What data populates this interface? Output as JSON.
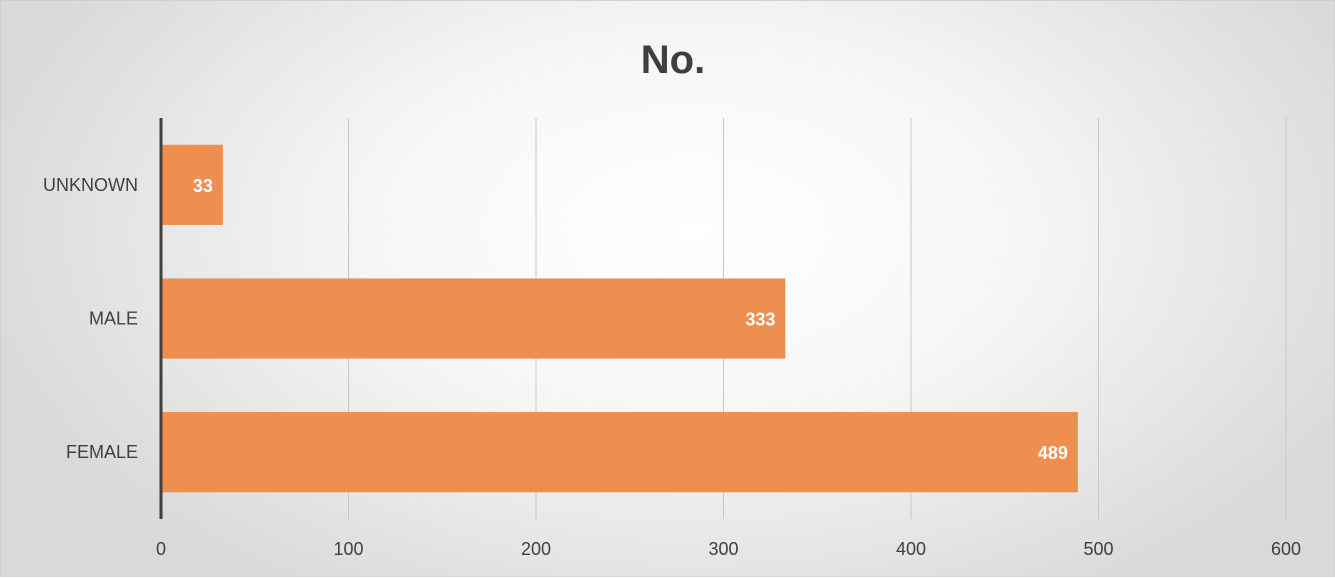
{
  "chart_data": {
    "type": "bar",
    "orientation": "horizontal",
    "title": "No.",
    "categories": [
      "UNKNOWN",
      "MALE",
      "FEMALE"
    ],
    "values": [
      33,
      333,
      489
    ],
    "xlabel": "",
    "ylabel": "",
    "xlim": [
      0,
      600
    ],
    "x_ticks": [
      0,
      100,
      200,
      300,
      400,
      500,
      600
    ],
    "grid": true,
    "legend": "none",
    "bar_color": "#ef8f4f",
    "data_labels": true
  }
}
